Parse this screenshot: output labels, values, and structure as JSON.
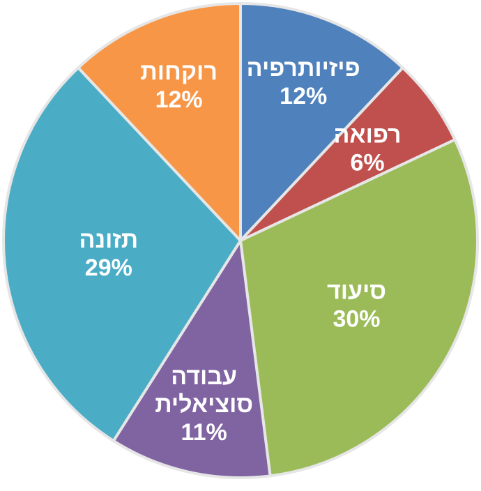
{
  "chart_data": {
    "type": "pie",
    "start": "top",
    "direction": "clockwise",
    "legend": "none",
    "slices": [
      {
        "label": "פיזיותרפיה",
        "value": 12,
        "value_label": "12%",
        "color": "#4F81BD"
      },
      {
        "label": "רפואה",
        "value": 6,
        "value_label": "6%",
        "color": "#C0504D"
      },
      {
        "label": "סיעוד",
        "value": 30,
        "value_label": "30%",
        "color": "#9BBB59"
      },
      {
        "label": "עבודה סוציאלית",
        "label_lines": [
          "עבודה",
          "סוציאלית"
        ],
        "value": 11,
        "value_label": "11%",
        "color": "#8064A2"
      },
      {
        "label": "תזונה",
        "value": 29,
        "value_label": "29%",
        "color": "#4BACC6"
      },
      {
        "label": "רוקחות",
        "value": 12,
        "value_label": "12%",
        "color": "#F79646"
      }
    ]
  }
}
